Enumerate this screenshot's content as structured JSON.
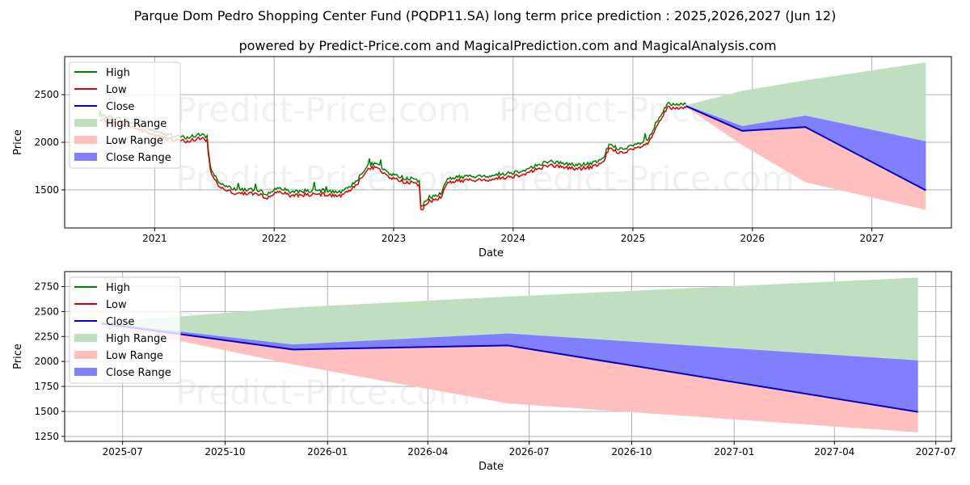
{
  "title": "Parque Dom Pedro Shopping Center Fund (PQDP11.SA) long term price prediction : 2025,2026,2027 (Jun 12)",
  "subtitle": "powered by Predict-Price.com and MagicalPrediction.com and MagicalAnalysis.com",
  "watermark": "Predict-Price.com",
  "colors": {
    "high": "#008000",
    "low": "#dd0000",
    "close": "#0000cc",
    "high_range": "#c0dfc0",
    "low_range": "#ffbfbf",
    "close_range": "#8080ff"
  },
  "legend": {
    "position": "upper-left",
    "items": [
      "High",
      "Low",
      "Close",
      "High Range",
      "Low Range",
      "Close Range"
    ]
  },
  "chart_data": [
    {
      "id": "top",
      "type": "line",
      "xlabel": "Date",
      "ylabel": "Price",
      "xlim": [
        "2020-04-01",
        "2027-09-01"
      ],
      "ylim": [
        1100,
        2900
      ],
      "grid": true,
      "x_ticks": [
        "2021",
        "2022",
        "2023",
        "2024",
        "2025",
        "2026",
        "2027"
      ],
      "x_tick_dates": [
        "2021-01-01",
        "2022-01-01",
        "2023-01-01",
        "2024-01-01",
        "2025-01-01",
        "2026-01-01",
        "2027-01-01"
      ],
      "y_ticks": [
        1500,
        2000,
        2500
      ],
      "history": {
        "x": [
          "2020-07-15",
          "2020-09-01",
          "2020-11-01",
          "2021-01-15",
          "2021-03-01",
          "2021-04-15",
          "2021-05-15",
          "2021-06-10",
          "2021-06-20",
          "2021-07-15",
          "2021-09-01",
          "2021-11-01",
          "2021-12-15",
          "2022-01-15",
          "2022-02-15",
          "2022-04-01",
          "2022-06-01",
          "2022-08-01",
          "2022-09-15",
          "2022-10-15",
          "2022-11-15",
          "2022-12-15",
          "2023-01-15",
          "2023-02-15",
          "2023-03-20",
          "2023-03-25",
          "2023-04-20",
          "2023-05-25",
          "2023-06-15",
          "2023-08-01",
          "2023-10-01",
          "2023-12-01",
          "2024-01-15",
          "2024-03-01",
          "2024-04-15",
          "2024-06-01",
          "2024-07-15",
          "2024-09-01",
          "2024-10-01",
          "2024-10-20",
          "2024-12-01",
          "2025-01-15",
          "2025-02-15",
          "2025-03-15",
          "2025-04-15",
          "2025-05-15",
          "2025-06-12"
        ],
        "close": [
          2250,
          2240,
          2170,
          2080,
          2040,
          2030,
          2060,
          2040,
          1720,
          1560,
          1490,
          1480,
          1440,
          1510,
          1460,
          1470,
          1470,
          1460,
          1600,
          1760,
          1740,
          1660,
          1620,
          1600,
          1580,
          1300,
          1400,
          1440,
          1600,
          1620,
          1620,
          1650,
          1670,
          1720,
          1780,
          1760,
          1740,
          1760,
          1800,
          1960,
          1900,
          1960,
          2000,
          2180,
          2380,
          2370,
          2380
        ],
        "high_offset": 40,
        "low_offset": -40
      },
      "forecast": {
        "x": [
          "2025-06-12",
          "2025-12-01",
          "2026-06-12",
          "2027-06-15"
        ],
        "close": [
          2380,
          2120,
          2160,
          1495
        ],
        "high_range": [
          [
            2380,
            2390
          ],
          [
            2110,
            2540
          ],
          [
            2140,
            2650
          ],
          [
            2010,
            2840
          ]
        ],
        "low_range": [
          [
            2370,
            2380
          ],
          [
            1970,
            2120
          ],
          [
            1580,
            2160
          ],
          [
            1290,
            1495
          ]
        ],
        "close_range": [
          [
            2380,
            2390
          ],
          [
            2110,
            2170
          ],
          [
            2160,
            2280
          ],
          [
            1495,
            2010
          ]
        ]
      }
    },
    {
      "id": "bottom",
      "type": "line",
      "xlabel": "Date",
      "ylabel": "Price",
      "xlim": [
        "2025-05-10",
        "2027-07-15"
      ],
      "ylim": [
        1200,
        2900
      ],
      "grid": true,
      "x_ticks": [
        "2025-07",
        "2025-10",
        "2026-01",
        "2026-04",
        "2026-07",
        "2026-10",
        "2027-01",
        "2027-04",
        "2027-07"
      ],
      "x_tick_dates": [
        "2025-07-01",
        "2025-10-01",
        "2026-01-01",
        "2026-04-01",
        "2026-07-01",
        "2026-10-01",
        "2027-01-01",
        "2027-04-01",
        "2027-07-01"
      ],
      "y_ticks": [
        1250,
        1500,
        1750,
        2000,
        2250,
        2500,
        2750
      ],
      "forecast": {
        "x": [
          "2025-06-12",
          "2025-12-01",
          "2026-06-12",
          "2027-06-15"
        ],
        "close": [
          2380,
          2120,
          2160,
          1495
        ],
        "high_range": [
          [
            2380,
            2390
          ],
          [
            2110,
            2540
          ],
          [
            2140,
            2650
          ],
          [
            2010,
            2840
          ]
        ],
        "low_range": [
          [
            2370,
            2380
          ],
          [
            1970,
            2120
          ],
          [
            1580,
            2160
          ],
          [
            1290,
            1495
          ]
        ],
        "close_range": [
          [
            2380,
            2390
          ],
          [
            2110,
            2170
          ],
          [
            2160,
            2280
          ],
          [
            1495,
            2010
          ]
        ]
      }
    }
  ]
}
